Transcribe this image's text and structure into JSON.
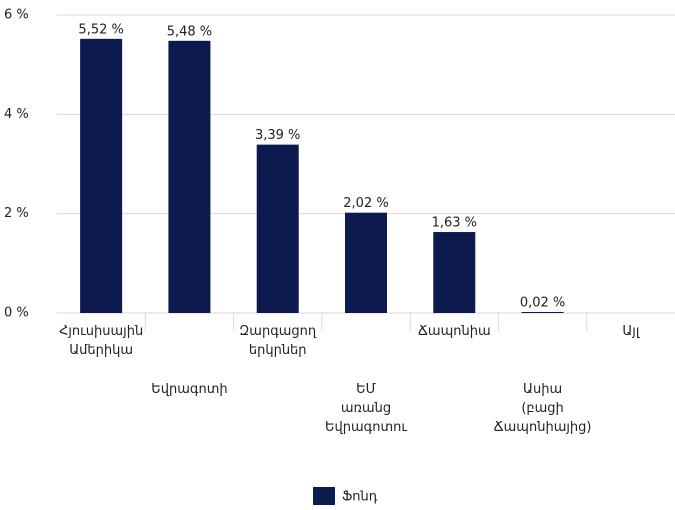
{
  "chart_data": {
    "type": "bar",
    "categories": [
      "Հյուսիսային\nԱմերիկա",
      "Եվրագոտի",
      "Զարգացող\nերկրներ",
      "ԵՄ\nառանց\nԵվրագոտու",
      "Ճապոնիա",
      "Ասիա\n(բացի\nՃապոնիայից)",
      "Այլ"
    ],
    "series": [
      {
        "name": "Ֆոնդ",
        "color": "#0c1a4e",
        "values": [
          5.52,
          5.48,
          3.39,
          2.02,
          1.63,
          0.02,
          null
        ],
        "value_labels": [
          "5,52 %",
          "5,48 %",
          "3,39 %",
          "2,02 %",
          "1,63 %",
          "0,02 %",
          null
        ]
      }
    ],
    "ylim": [
      0,
      6
    ],
    "yticks": [
      {
        "value": 0,
        "label": "0 %"
      },
      {
        "value": 2,
        "label": "2 %"
      },
      {
        "value": 4,
        "label": "4 %"
      },
      {
        "value": 6,
        "label": "6 %"
      }
    ],
    "grid": true
  }
}
